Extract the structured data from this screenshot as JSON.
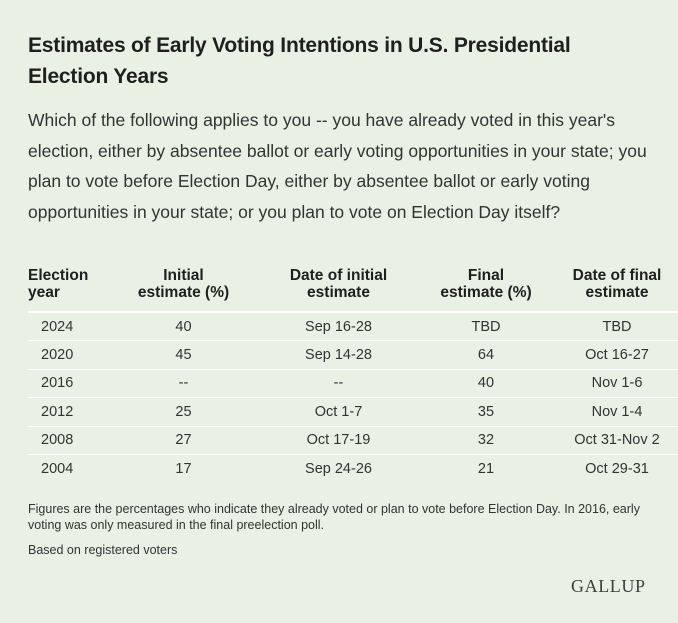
{
  "title": "Estimates of Early Voting Intentions in U.S. Presidential Election Years",
  "question": "Which of the following applies to you -- you have already voted in this year's election, either by absentee ballot or early voting opportunities in your state; you plan to vote before Election Day, either by absentee ballot or early voting opportunities in your state; or you plan to vote on Election Day itself?",
  "table": {
    "headers": [
      [
        "Election",
        "year"
      ],
      [
        "Initial",
        "estimate (%)"
      ],
      [
        "Date of initial",
        "estimate"
      ],
      [
        "Final",
        "estimate (%)"
      ],
      [
        "Date of final",
        "estimate"
      ]
    ],
    "rows": [
      [
        "2024",
        "40",
        "Sep 16-28",
        "TBD",
        "TBD"
      ],
      [
        "2020",
        "45",
        "Sep 14-28",
        "64",
        "Oct 16-27"
      ],
      [
        "2016",
        "--",
        "--",
        "40",
        "Nov 1-6"
      ],
      [
        "2012",
        "25",
        "Oct 1-7",
        "35",
        "Nov 1-4"
      ],
      [
        "2008",
        "27",
        "Oct 17-19",
        "32",
        "Oct 31-Nov 2"
      ],
      [
        "2004",
        "17",
        "Sep 24-26",
        "21",
        "Oct 29-31"
      ]
    ]
  },
  "footnote": "Figures are the percentages who indicate they already voted or plan to vote before Election Day. In 2016, early voting was only measured in the final preelection poll.",
  "basis": "Based on registered voters",
  "logo": "GALLUP",
  "colors": {
    "background": "#e8f1e4",
    "row_divider": "#ffffff",
    "text": "#333333"
  }
}
